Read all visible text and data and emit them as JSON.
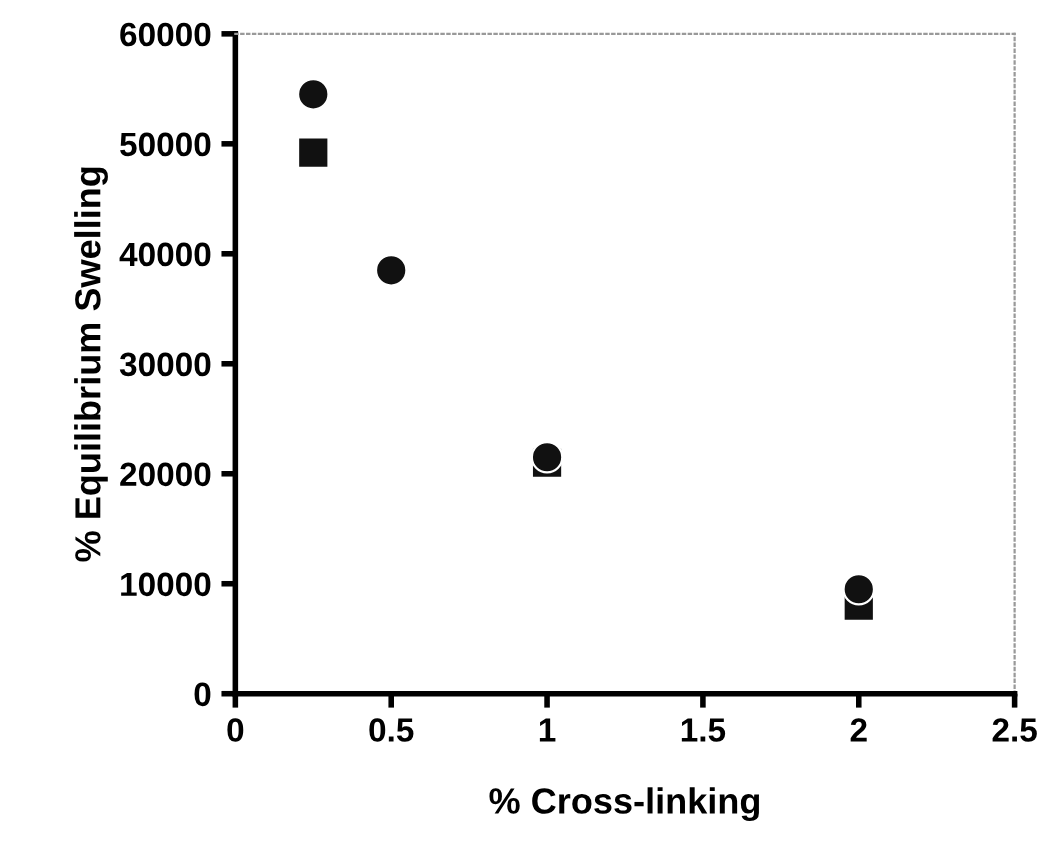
{
  "chart_data": {
    "type": "scatter",
    "xlabel": "% Cross-linking",
    "ylabel": "% Equilibrium Swelling",
    "series": [
      {
        "color": "#111111",
        "marker": "circle",
        "x": [
          0.25,
          0.5,
          1,
          2
        ],
        "values": [
          54500,
          38500,
          21500,
          9500
        ]
      },
      {
        "color": "#111111",
        "marker": "square",
        "x": [
          0.25,
          1,
          2
        ],
        "values": [
          49200,
          21000,
          8000
        ]
      }
    ],
    "xlim": [
      0,
      2.5
    ],
    "xticks": [
      0,
      0.5,
      1,
      1.5,
      2,
      2.5
    ],
    "ylim": [
      0,
      60000
    ],
    "yticks": [
      0,
      10000,
      20000,
      30000,
      40000,
      50000,
      60000
    ],
    "grid": false,
    "legend": false
  }
}
